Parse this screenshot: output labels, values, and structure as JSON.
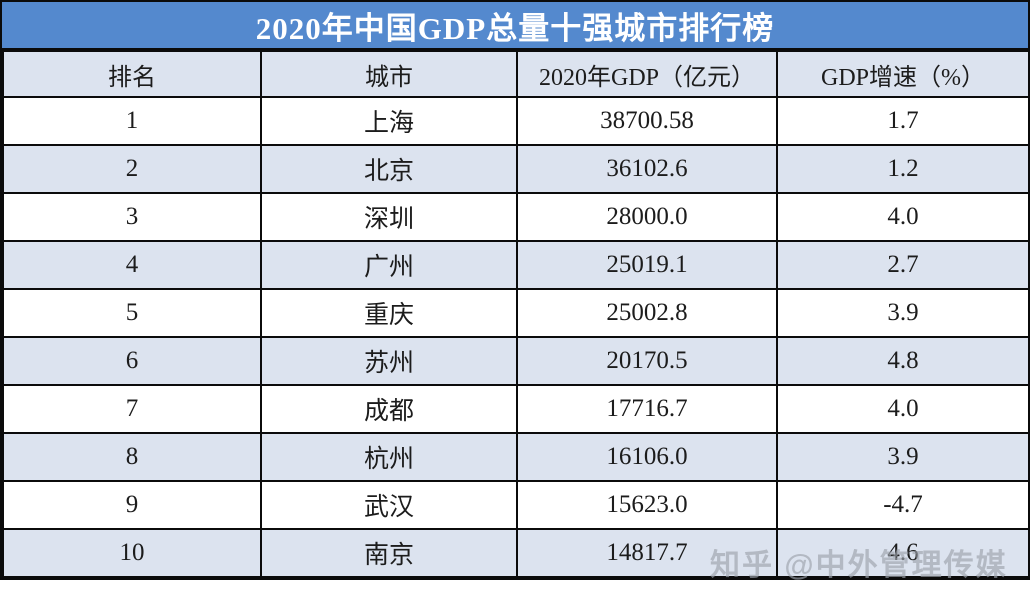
{
  "chart_data": {
    "type": "table",
    "title": "2020年中国GDP总量十强城市排行榜",
    "columns": [
      "排名",
      "城市",
      "2020年GDP（亿元）",
      "GDP增速（%）"
    ],
    "rows": [
      {
        "rank": "1",
        "city": "上海",
        "gdp": "38700.58",
        "growth": "1.7"
      },
      {
        "rank": "2",
        "city": "北京",
        "gdp": "36102.6",
        "growth": "1.2"
      },
      {
        "rank": "3",
        "city": "深圳",
        "gdp": "28000.0",
        "growth": "4.0"
      },
      {
        "rank": "4",
        "city": "广州",
        "gdp": "25019.1",
        "growth": "2.7"
      },
      {
        "rank": "5",
        "city": "重庆",
        "gdp": "25002.8",
        "growth": "3.9"
      },
      {
        "rank": "6",
        "city": "苏州",
        "gdp": "20170.5",
        "growth": "4.8"
      },
      {
        "rank": "7",
        "city": "成都",
        "gdp": "17716.7",
        "growth": "4.0"
      },
      {
        "rank": "8",
        "city": "杭州",
        "gdp": "16106.0",
        "growth": "3.9"
      },
      {
        "rank": "9",
        "city": "武汉",
        "gdp": "15623.0",
        "growth": "-4.7"
      },
      {
        "rank": "10",
        "city": "南京",
        "gdp": "14817.7",
        "growth": "4.6"
      }
    ]
  },
  "watermark": {
    "text": "知乎 @中外管理传媒"
  },
  "colors": {
    "title_bg": "#5489CE",
    "stripe_bg": "#DCE3EF",
    "row_bg": "#FFFFFF",
    "border": "#0B0B0B",
    "title_text": "#FFFFFF",
    "body_text": "#1C1C1C",
    "watermark_text": "#9EA3AD"
  }
}
